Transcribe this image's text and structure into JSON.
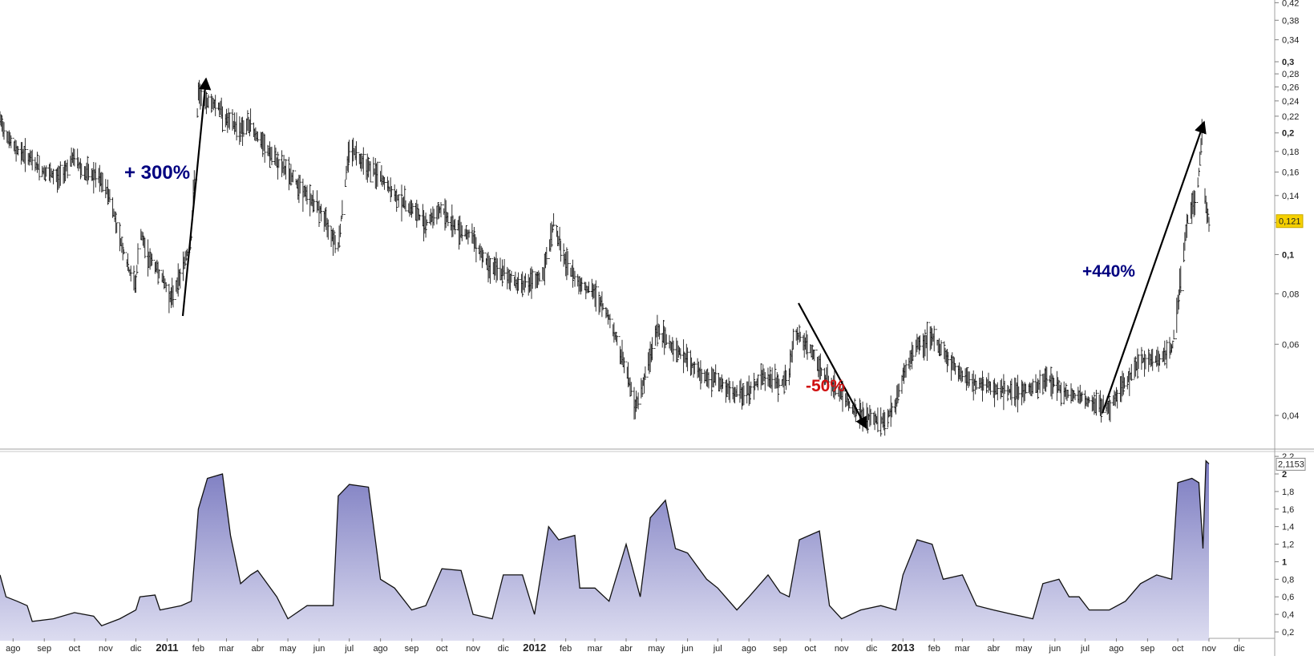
{
  "chart_data": [
    {
      "type": "bar",
      "style": "ohlc-price",
      "y_scale": "log",
      "ylim": [
        0.036,
        0.42
      ],
      "y_ticks": [
        "0,04",
        "0,06",
        "0,08",
        "0,1",
        "0,12",
        "0,14",
        "0,16",
        "0,18",
        "0,2",
        "0,22",
        "0,24",
        "0,26",
        "0,28",
        "0,3",
        "0,34",
        "0,38",
        "0,42"
      ],
      "last_value_label": "0,121",
      "grid": false,
      "legend": "none",
      "series": [
        {
          "points": [
            [
              "2010-07-19",
              0.215
            ],
            [
              "2010-08-01",
              0.185
            ],
            [
              "2010-08-15",
              0.175
            ],
            [
              "2010-09-01",
              0.16
            ],
            [
              "2010-09-15",
              0.155
            ],
            [
              "2010-10-01",
              0.175
            ],
            [
              "2010-10-10",
              0.16
            ],
            [
              "2010-10-25",
              0.155
            ],
            [
              "2010-11-05",
              0.14
            ],
            [
              "2010-11-15",
              0.11
            ],
            [
              "2010-11-25",
              0.09
            ],
            [
              "2010-12-01",
              0.085
            ],
            [
              "2010-12-05",
              0.115
            ],
            [
              "2010-12-12",
              0.1
            ],
            [
              "2010-12-25",
              0.09
            ],
            [
              "2011-01-05",
              0.078
            ],
            [
              "2011-01-15",
              0.09
            ],
            [
              "2011-01-25",
              0.11
            ],
            [
              "2011-02-01",
              0.25
            ],
            [
              "2011-02-10",
              0.24
            ],
            [
              "2011-02-20",
              0.235
            ],
            [
              "2011-03-01",
              0.215
            ],
            [
              "2011-03-15",
              0.205
            ],
            [
              "2011-03-25",
              0.21
            ],
            [
              "2011-04-01",
              0.195
            ],
            [
              "2011-04-15",
              0.175
            ],
            [
              "2011-05-01",
              0.16
            ],
            [
              "2011-05-15",
              0.145
            ],
            [
              "2011-06-01",
              0.13
            ],
            [
              "2011-06-20",
              0.105
            ],
            [
              "2011-07-01",
              0.185
            ],
            [
              "2011-07-15",
              0.17
            ],
            [
              "2011-08-01",
              0.155
            ],
            [
              "2011-08-15",
              0.14
            ],
            [
              "2011-09-01",
              0.13
            ],
            [
              "2011-09-15",
              0.12
            ],
            [
              "2011-10-01",
              0.13
            ],
            [
              "2011-10-10",
              0.12
            ],
            [
              "2011-11-01",
              0.11
            ],
            [
              "2011-11-15",
              0.095
            ],
            [
              "2011-12-01",
              0.09
            ],
            [
              "2011-12-15",
              0.085
            ],
            [
              "2012-01-01",
              0.085
            ],
            [
              "2012-01-10",
              0.09
            ],
            [
              "2012-01-20",
              0.12
            ],
            [
              "2012-02-01",
              0.095
            ],
            [
              "2012-02-15",
              0.085
            ],
            [
              "2012-03-01",
              0.08
            ],
            [
              "2012-03-15",
              0.07
            ],
            [
              "2012-04-01",
              0.052
            ],
            [
              "2012-04-10",
              0.042
            ],
            [
              "2012-04-20",
              0.05
            ],
            [
              "2012-05-01",
              0.065
            ],
            [
              "2012-05-15",
              0.06
            ],
            [
              "2012-06-01",
              0.055
            ],
            [
              "2012-06-15",
              0.05
            ],
            [
              "2012-07-01",
              0.049
            ],
            [
              "2012-07-15",
              0.045
            ],
            [
              "2012-08-01",
              0.046
            ],
            [
              "2012-08-15",
              0.05
            ],
            [
              "2012-09-01",
              0.048
            ],
            [
              "2012-09-10",
              0.05
            ],
            [
              "2012-09-15",
              0.065
            ],
            [
              "2012-10-01",
              0.058
            ],
            [
              "2012-10-15",
              0.05
            ],
            [
              "2012-11-01",
              0.045
            ],
            [
              "2012-11-15",
              0.041
            ],
            [
              "2012-11-25",
              0.04
            ],
            [
              "2012-12-01",
              0.039
            ],
            [
              "2012-12-15",
              0.039
            ],
            [
              "2012-12-25",
              0.043
            ],
            [
              "2013-01-01",
              0.05
            ],
            [
              "2013-01-15",
              0.06
            ],
            [
              "2013-02-01",
              0.062
            ],
            [
              "2013-02-15",
              0.055
            ],
            [
              "2013-03-01",
              0.05
            ],
            [
              "2013-03-15",
              0.048
            ],
            [
              "2013-04-01",
              0.047
            ],
            [
              "2013-04-15",
              0.046
            ],
            [
              "2013-05-01",
              0.046
            ],
            [
              "2013-05-15",
              0.047
            ],
            [
              "2013-05-25",
              0.05
            ],
            [
              "2013-06-05",
              0.047
            ],
            [
              "2013-06-15",
              0.045
            ],
            [
              "2013-07-01",
              0.044
            ],
            [
              "2013-07-15",
              0.042
            ],
            [
              "2013-07-25",
              0.042
            ],
            [
              "2013-08-10",
              0.048
            ],
            [
              "2013-08-25",
              0.055
            ],
            [
              "2013-09-10",
              0.055
            ],
            [
              "2013-09-25",
              0.058
            ],
            [
              "2013-10-01",
              0.075
            ],
            [
              "2013-10-10",
              0.12
            ],
            [
              "2013-10-20",
              0.14
            ],
            [
              "2013-10-25",
              0.2
            ],
            [
              "2013-10-28",
              0.14
            ],
            [
              "2013-11-01",
              0.121
            ]
          ]
        }
      ],
      "annotations": [
        {
          "text": "+ 300%",
          "color": "#000080"
        },
        {
          "text": "-50%",
          "color": "#d01010"
        },
        {
          "text": "+440%",
          "color": "#000080"
        }
      ]
    },
    {
      "type": "area",
      "ylim": [
        0.1,
        2.2
      ],
      "y_ticks": [
        "0,2",
        "0,4",
        "0,6",
        "0,8",
        "1",
        "1,2",
        "1,4",
        "1,6",
        "1,8",
        "2",
        "2,2"
      ],
      "last_value_label": "2,1153",
      "fill_color": "#7a7ac0",
      "series": [
        {
          "points": [
            [
              "2010-07-19",
              0.85
            ],
            [
              "2010-07-25",
              0.6
            ],
            [
              "2010-08-05",
              0.55
            ],
            [
              "2010-08-15",
              0.5
            ],
            [
              "2010-08-20",
              0.32
            ],
            [
              "2010-09-10",
              0.35
            ],
            [
              "2010-10-01",
              0.42
            ],
            [
              "2010-10-20",
              0.38
            ],
            [
              "2010-10-28",
              0.27
            ],
            [
              "2010-11-15",
              0.35
            ],
            [
              "2010-12-01",
              0.45
            ],
            [
              "2010-12-05",
              0.6
            ],
            [
              "2010-12-20",
              0.62
            ],
            [
              "2010-12-25",
              0.45
            ],
            [
              "2011-01-15",
              0.5
            ],
            [
              "2011-01-25",
              0.55
            ],
            [
              "2011-02-01",
              1.6
            ],
            [
              "2011-02-10",
              1.95
            ],
            [
              "2011-02-25",
              2.0
            ],
            [
              "2011-03-05",
              1.3
            ],
            [
              "2011-03-15",
              0.75
            ],
            [
              "2011-03-25",
              0.85
            ],
            [
              "2011-04-01",
              0.9
            ],
            [
              "2011-04-20",
              0.6
            ],
            [
              "2011-05-01",
              0.35
            ],
            [
              "2011-05-20",
              0.5
            ],
            [
              "2011-06-15",
              0.5
            ],
            [
              "2011-06-20",
              1.75
            ],
            [
              "2011-07-01",
              1.88
            ],
            [
              "2011-07-20",
              1.85
            ],
            [
              "2011-08-01",
              0.8
            ],
            [
              "2011-08-15",
              0.7
            ],
            [
              "2011-09-01",
              0.45
            ],
            [
              "2011-09-15",
              0.5
            ],
            [
              "2011-10-01",
              0.92
            ],
            [
              "2011-10-20",
              0.9
            ],
            [
              "2011-11-01",
              0.4
            ],
            [
              "2011-11-20",
              0.35
            ],
            [
              "2011-12-01",
              0.85
            ],
            [
              "2011-12-20",
              0.85
            ],
            [
              "2012-01-01",
              0.4
            ],
            [
              "2012-01-15",
              1.4
            ],
            [
              "2012-01-25",
              1.25
            ],
            [
              "2012-02-10",
              1.3
            ],
            [
              "2012-02-15",
              0.7
            ],
            [
              "2012-03-01",
              0.7
            ],
            [
              "2012-03-15",
              0.55
            ],
            [
              "2012-04-01",
              1.2
            ],
            [
              "2012-04-15",
              0.6
            ],
            [
              "2012-04-25",
              1.5
            ],
            [
              "2012-05-10",
              1.7
            ],
            [
              "2012-05-20",
              1.15
            ],
            [
              "2012-06-01",
              1.1
            ],
            [
              "2012-06-20",
              0.8
            ],
            [
              "2012-07-01",
              0.7
            ],
            [
              "2012-07-20",
              0.45
            ],
            [
              "2012-08-01",
              0.6
            ],
            [
              "2012-08-20",
              0.85
            ],
            [
              "2012-09-01",
              0.65
            ],
            [
              "2012-09-10",
              0.6
            ],
            [
              "2012-09-20",
              1.25
            ],
            [
              "2012-10-10",
              1.35
            ],
            [
              "2012-10-20",
              0.5
            ],
            [
              "2012-11-01",
              0.35
            ],
            [
              "2012-11-20",
              0.45
            ],
            [
              "2012-12-10",
              0.5
            ],
            [
              "2012-12-25",
              0.45
            ],
            [
              "2013-01-01",
              0.85
            ],
            [
              "2013-01-15",
              1.25
            ],
            [
              "2013-01-30",
              1.2
            ],
            [
              "2013-02-10",
              0.8
            ],
            [
              "2013-03-01",
              0.85
            ],
            [
              "2013-03-15",
              0.5
            ],
            [
              "2013-04-01",
              0.45
            ],
            [
              "2013-04-20",
              0.4
            ],
            [
              "2013-05-10",
              0.35
            ],
            [
              "2013-05-20",
              0.75
            ],
            [
              "2013-06-05",
              0.8
            ],
            [
              "2013-06-15",
              0.6
            ],
            [
              "2013-06-25",
              0.6
            ],
            [
              "2013-07-05",
              0.45
            ],
            [
              "2013-07-25",
              0.45
            ],
            [
              "2013-08-10",
              0.55
            ],
            [
              "2013-08-25",
              0.75
            ],
            [
              "2013-09-10",
              0.85
            ],
            [
              "2013-09-25",
              0.8
            ],
            [
              "2013-10-01",
              1.9
            ],
            [
              "2013-10-15",
              1.95
            ],
            [
              "2013-10-22",
              1.9
            ],
            [
              "2013-10-26",
              1.15
            ],
            [
              "2013-10-29",
              2.15
            ],
            [
              "2013-11-01",
              2.1153
            ]
          ]
        }
      ]
    },
    {
      "type": "axis",
      "x_labels": [
        [
          "2010-08-01",
          "ago"
        ],
        [
          "2010-09-01",
          "sep"
        ],
        [
          "2010-10-01",
          "oct"
        ],
        [
          "2010-11-01",
          "nov"
        ],
        [
          "2010-12-01",
          "dic"
        ],
        [
          "2011-01-01",
          "2011"
        ],
        [
          "2011-02-01",
          "feb"
        ],
        [
          "2011-03-01",
          "mar"
        ],
        [
          "2011-04-01",
          "abr"
        ],
        [
          "2011-05-01",
          "may"
        ],
        [
          "2011-06-01",
          "jun"
        ],
        [
          "2011-07-01",
          "jul"
        ],
        [
          "2011-08-01",
          "ago"
        ],
        [
          "2011-09-01",
          "sep"
        ],
        [
          "2011-10-01",
          "oct"
        ],
        [
          "2011-11-01",
          "nov"
        ],
        [
          "2011-12-01",
          "dic"
        ],
        [
          "2012-01-01",
          "2012"
        ],
        [
          "2012-02-01",
          "feb"
        ],
        [
          "2012-03-01",
          "mar"
        ],
        [
          "2012-04-01",
          "abr"
        ],
        [
          "2012-05-01",
          "may"
        ],
        [
          "2012-06-01",
          "jun"
        ],
        [
          "2012-07-01",
          "jul"
        ],
        [
          "2012-08-01",
          "ago"
        ],
        [
          "2012-09-01",
          "sep"
        ],
        [
          "2012-10-01",
          "oct"
        ],
        [
          "2012-11-01",
          "nov"
        ],
        [
          "2012-12-01",
          "dic"
        ],
        [
          "2013-01-01",
          "2013"
        ],
        [
          "2013-02-01",
          "feb"
        ],
        [
          "2013-03-01",
          "mar"
        ],
        [
          "2013-04-01",
          "abr"
        ],
        [
          "2013-05-01",
          "may"
        ],
        [
          "2013-06-01",
          "jun"
        ],
        [
          "2013-07-01",
          "jul"
        ],
        [
          "2013-08-01",
          "ago"
        ],
        [
          "2013-09-01",
          "sep"
        ],
        [
          "2013-10-01",
          "oct"
        ],
        [
          "2013-11-01",
          "nov"
        ],
        [
          "2013-12-01",
          "dic"
        ]
      ]
    }
  ]
}
